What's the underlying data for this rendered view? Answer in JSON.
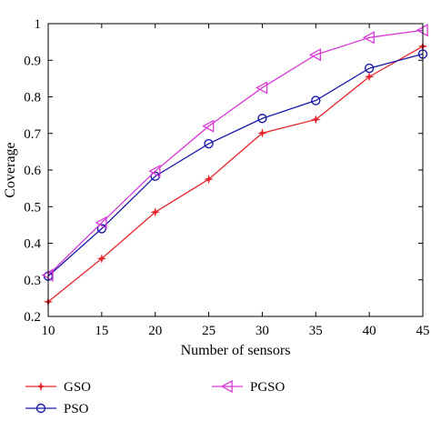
{
  "chart_data": {
    "type": "line",
    "xlabel": "Number of sensors",
    "ylabel": "Coverage",
    "xlim": [
      10,
      45
    ],
    "ylim": [
      0.2,
      1.0
    ],
    "x": [
      10,
      15,
      20,
      25,
      30,
      35,
      40,
      45
    ],
    "xticks": [
      "10",
      "15",
      "20",
      "25",
      "30",
      "35",
      "40",
      "45"
    ],
    "yticks": [
      "0.2",
      "0.3",
      "0.4",
      "0.5",
      "0.6",
      "0.7",
      "0.8",
      "0.9",
      "1"
    ],
    "grid": false,
    "legend_position": "bottom",
    "series": [
      {
        "name": "GSO",
        "color": "#e8232b",
        "marker": "star",
        "values": [
          0.24,
          0.358,
          0.485,
          0.575,
          0.701,
          0.738,
          0.855,
          0.938
        ]
      },
      {
        "name": "PSO",
        "color": "#1a1aa8",
        "marker": "circle",
        "values": [
          0.31,
          0.44,
          0.583,
          0.672,
          0.741,
          0.79,
          0.878,
          0.917
        ]
      },
      {
        "name": "PGSO",
        "color": "#d63ad6",
        "marker": "triangle-left",
        "values": [
          0.313,
          0.456,
          0.597,
          0.72,
          0.825,
          0.915,
          0.962,
          0.982
        ]
      }
    ]
  }
}
